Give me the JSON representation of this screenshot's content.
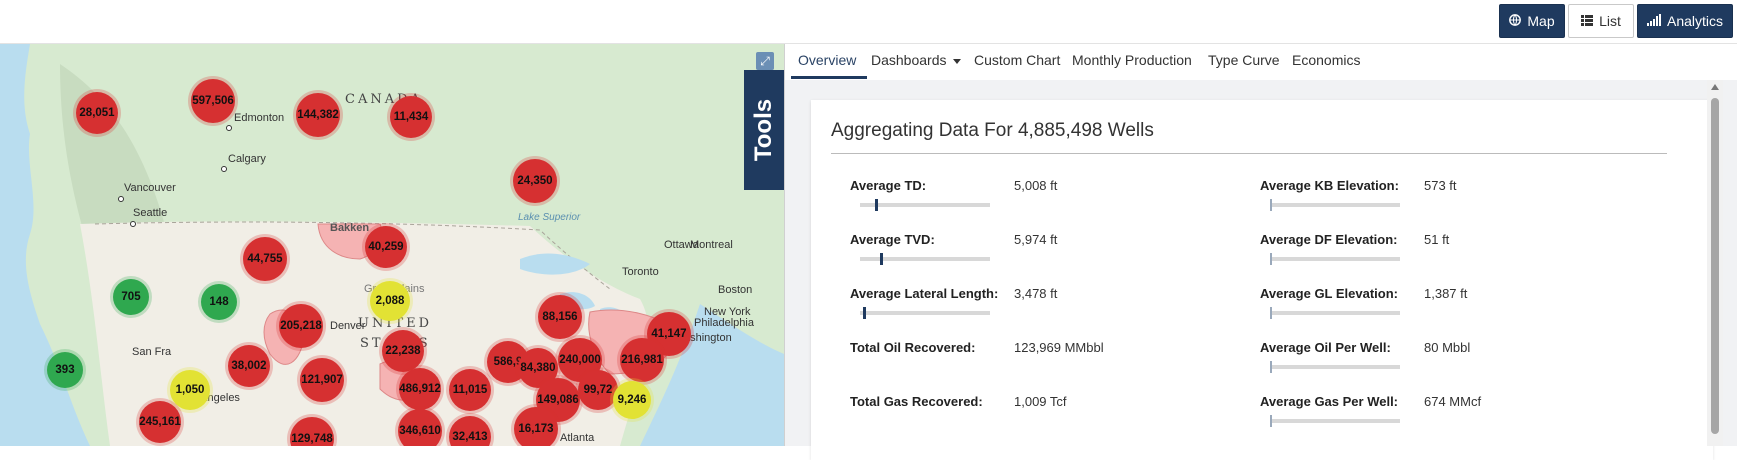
{
  "view_buttons": {
    "map": "Map",
    "list": "List",
    "analytics": "Analytics"
  },
  "map": {
    "tools_label": "Tools",
    "region_labels": [
      "CANADA",
      "UNITED",
      "STATES"
    ],
    "place_labels": {
      "edmonton": "Edmonton",
      "calgary": "Calgary",
      "vancouver": "Vancouver",
      "seattle": "Seattle",
      "bakken": "Bakken",
      "great_plains": "Great Plains",
      "denver": "Denver",
      "san_francisco": "San Fra",
      "los_angeles": "Los Angeles",
      "lake_superior": "Lake Superior",
      "ottawa": "Ottawa",
      "montreal": "Montreal",
      "toronto": "Toronto",
      "boston": "Boston",
      "new_york": "New York",
      "philadelphia": "Philadelphia",
      "washington": "Washington",
      "atlanta": "Atlanta"
    },
    "clusters": [
      {
        "count": "28,051",
        "color": "red"
      },
      {
        "count": "597,506",
        "color": "red"
      },
      {
        "count": "144,382",
        "color": "red"
      },
      {
        "count": "11,434",
        "color": "red"
      },
      {
        "count": "24,350",
        "color": "red"
      },
      {
        "count": "40,259",
        "color": "red"
      },
      {
        "count": "44,755",
        "color": "red"
      },
      {
        "count": "705",
        "color": "green"
      },
      {
        "count": "148",
        "color": "green"
      },
      {
        "count": "2,088",
        "color": "yellow"
      },
      {
        "count": "88,156",
        "color": "red"
      },
      {
        "count": "41,147",
        "color": "red"
      },
      {
        "count": "205,218",
        "color": "red"
      },
      {
        "count": "22,238",
        "color": "red"
      },
      {
        "count": "586,9",
        "color": "red"
      },
      {
        "count": "84,380",
        "color": "red"
      },
      {
        "count": "240,000",
        "color": "red"
      },
      {
        "count": "216,981",
        "color": "red"
      },
      {
        "count": "38,002",
        "color": "red"
      },
      {
        "count": "121,907",
        "color": "red"
      },
      {
        "count": "486,912",
        "color": "red"
      },
      {
        "count": "11,015",
        "color": "red"
      },
      {
        "count": "149,086",
        "color": "red"
      },
      {
        "count": "99,72",
        "color": "red"
      },
      {
        "count": "9,246",
        "color": "yellow"
      },
      {
        "count": "393",
        "color": "green"
      },
      {
        "count": "1,050",
        "color": "yellow"
      },
      {
        "count": "245,161",
        "color": "red"
      },
      {
        "count": "129,748",
        "color": "red"
      },
      {
        "count": "346,610",
        "color": "red"
      },
      {
        "count": "32,413",
        "color": "red"
      },
      {
        "count": "16,173",
        "color": "red"
      }
    ]
  },
  "tabs": [
    "Overview",
    "Dashboards",
    "Custom Chart",
    "Monthly Production",
    "Type Curve",
    "Economics"
  ],
  "card": {
    "title": "Aggregating Data For 4,885,498 Wells",
    "left_stats": [
      {
        "label": "Average TD:",
        "value": "5,008 ft",
        "level": 0.12
      },
      {
        "label": "Average TVD:",
        "value": "5,974 ft",
        "level": 0.16
      },
      {
        "label": "Average Lateral Length:",
        "value": "3,478 ft",
        "level": 0.02
      },
      {
        "label": "Total Oil Recovered:",
        "value": "123,969 MMbbl",
        "level": null
      },
      {
        "label": "Total Gas Recovered:",
        "value": "1,009 Tcf",
        "level": null
      }
    ],
    "right_stats": [
      {
        "label": "Average KB Elevation:",
        "value": "573 ft",
        "level": 0.0
      },
      {
        "label": "Average DF Elevation:",
        "value": "51 ft",
        "level": 0.0
      },
      {
        "label": "Average GL Elevation:",
        "value": "1,387 ft",
        "level": 0.0
      },
      {
        "label": "Average Oil Per Well:",
        "value": "80 Mbbl",
        "level": 0.0
      },
      {
        "label": "Average Gas Per Well:",
        "value": "674 MMcf",
        "level": 0.0
      }
    ]
  }
}
